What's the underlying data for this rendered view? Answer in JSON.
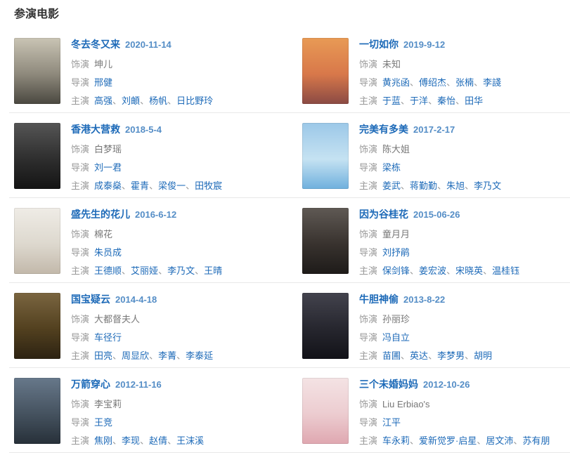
{
  "page": {
    "title": "参演电影"
  },
  "labels": {
    "role": "饰演",
    "director": "导演",
    "cast": "主演",
    "separator": "、"
  },
  "colors": {
    "link_blue": "#1d6ab8",
    "date_blue": "#548dc6",
    "label_gray": "#999999",
    "value_gray": "#777777",
    "divider": "#e8e8e8",
    "title_color": "#333333"
  },
  "movies": [
    {
      "title": "冬去冬又来",
      "date": "2020-11-14",
      "role": "坤儿",
      "directors": [
        "邢健"
      ],
      "cast": [
        "高强",
        "刘頔",
        "杨帆",
        "日比野玲"
      ],
      "poster": {
        "name": "ink-wash-poster",
        "colors": [
          "#c9c4b4",
          "#8e897c",
          "#4a4840"
        ]
      }
    },
    {
      "title": "一切如你",
      "date": "2019-9-12",
      "role": "未知",
      "directors": [
        "黄兆函",
        "傅绍杰",
        "张楠",
        "李諓"
      ],
      "cast": [
        "于蓝",
        "于洋",
        "秦怡",
        "田华"
      ],
      "poster": {
        "name": "orange-illustration-poster",
        "colors": [
          "#e89a55",
          "#d8784a",
          "#8a4a44"
        ]
      }
    },
    {
      "title": "香港大营救",
      "date": "2018-5-4",
      "role": "白梦瑶",
      "directors": [
        "刘一君"
      ],
      "cast": [
        "成泰燊",
        "霍青",
        "梁俊一",
        "田牧宸"
      ],
      "poster": {
        "name": "dark-faces-poster",
        "colors": [
          "#555555",
          "#2e2e2e",
          "#141414"
        ]
      }
    },
    {
      "title": "完美有多美",
      "date": "2017-2-17",
      "role": "陈大姐",
      "directors": [
        "梁栋"
      ],
      "cast": [
        "姜武",
        "蒋勤勤",
        "朱旭",
        "李乃文"
      ],
      "poster": {
        "name": "blue-sky-poster",
        "colors": [
          "#9cc8e8",
          "#c5e2f2",
          "#6fb0dd"
        ]
      }
    },
    {
      "title": "盛先生的花儿",
      "date": "2016-6-12",
      "role": "棉花",
      "directors": [
        "朱员成"
      ],
      "cast": [
        "王德顺",
        "艾丽娅",
        "李乃文",
        "王晴"
      ],
      "poster": {
        "name": "cartoon-light-poster",
        "colors": [
          "#efece6",
          "#ddd8ce",
          "#c2b8aa"
        ]
      }
    },
    {
      "title": "因为谷桂花",
      "date": "2015-06-26",
      "role": "童月月",
      "directors": [
        "刘抒鹃"
      ],
      "cast": [
        "保剑锋",
        "姜宏波",
        "宋晓英",
        "温桂钰"
      ],
      "poster": {
        "name": "dark-red-text-poster",
        "colors": [
          "#5f5954",
          "#38322e",
          "#1e1b19"
        ]
      }
    },
    {
      "title": "国宝疑云",
      "date": "2014-4-18",
      "role": "大都督夫人",
      "directors": [
        "车径行"
      ],
      "cast": [
        "田亮",
        "周显欣",
        "李菁",
        "李泰延"
      ],
      "poster": {
        "name": "brown-gold-poster",
        "colors": [
          "#7a6540",
          "#52401f",
          "#2c2212"
        ]
      }
    },
    {
      "title": "牛胆神偷",
      "date": "2013-8-22",
      "role": "孙丽珍",
      "directors": [
        "冯自立"
      ],
      "cast": [
        "苗圃",
        "英达",
        "李梦男",
        "胡明"
      ],
      "poster": {
        "name": "dark-lineup-poster",
        "colors": [
          "#43434d",
          "#26262e",
          "#121218"
        ]
      }
    },
    {
      "title": "万箭穿心",
      "date": "2012-11-16",
      "role": "李宝莉",
      "directors": [
        "王竞"
      ],
      "cast": [
        "焦刚",
        "李现",
        "赵倩",
        "王沫溪"
      ],
      "poster": {
        "name": "blue-gray-portrait-poster",
        "colors": [
          "#67788a",
          "#45525f",
          "#273039"
        ]
      }
    },
    {
      "title": "三个未婚妈妈",
      "date": "2012-10-26",
      "role": "Liu Erbiao's",
      "directors": [
        "江平"
      ],
      "cast": [
        "车永莉",
        "爱新觉罗·启星",
        "居文沛",
        "苏有朋"
      ],
      "poster": {
        "name": "pink-heart-poster",
        "colors": [
          "#f4e3e4",
          "#ecccd0",
          "#dfa7b0"
        ]
      }
    }
  ]
}
